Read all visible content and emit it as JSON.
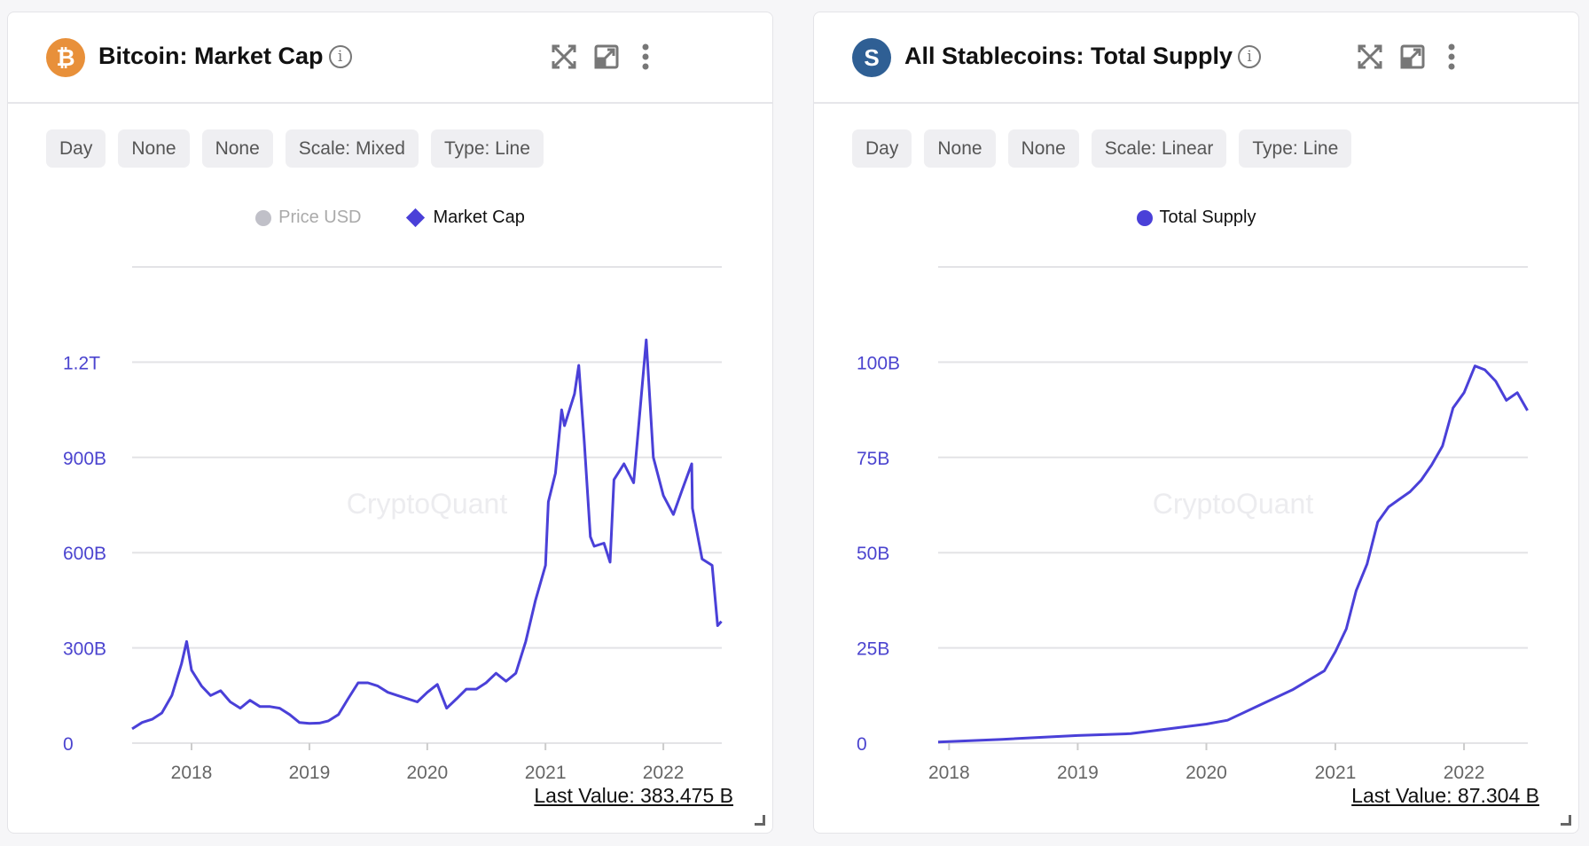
{
  "panels": [
    {
      "title": "Bitcoin: Market Cap",
      "coin_icon": "bitcoin-icon",
      "coin_glyph": "₿",
      "coin_color": "#e8903a",
      "buttons": [
        "Day",
        "None",
        "None",
        "Scale: Mixed",
        "Type: Line"
      ],
      "legend": [
        {
          "label": "Price USD",
          "marker": "circle",
          "color": "#c0c0c8",
          "active": false
        },
        {
          "label": "Market Cap",
          "marker": "diamond",
          "color": "#4a40d8",
          "active": true
        }
      ],
      "watermark": "CryptoQuant",
      "last_value": "Last Value: 383.475 B"
    },
    {
      "title": "All Stablecoins: Total Supply",
      "coin_icon": "stablecoin-icon",
      "coin_glyph": "S",
      "coin_color": "#2f5f94",
      "buttons": [
        "Day",
        "None",
        "None",
        "Scale: Linear",
        "Type: Line"
      ],
      "legend": [
        {
          "label": "Total Supply",
          "marker": "circle",
          "color": "#4a40d8",
          "active": true
        }
      ],
      "watermark": "CryptoQuant",
      "last_value": "Last Value: 87.304 B"
    }
  ],
  "chart_data": [
    {
      "type": "line",
      "series": [
        {
          "name": "Market Cap",
          "color": "#4a40d8",
          "unit": "B USD",
          "x": [
            "2017-07",
            "2017-08",
            "2017-09",
            "2017-10",
            "2017-11",
            "2017-12",
            "2017-12-17",
            "2018-01",
            "2018-02",
            "2018-03",
            "2018-04",
            "2018-05",
            "2018-06",
            "2018-07",
            "2018-08",
            "2018-09",
            "2018-10",
            "2018-11",
            "2018-12",
            "2019-01",
            "2019-02",
            "2019-03",
            "2019-04",
            "2019-05",
            "2019-06",
            "2019-07",
            "2019-08",
            "2019-09",
            "2019-10",
            "2019-11",
            "2019-12",
            "2020-01",
            "2020-02",
            "2020-03",
            "2020-04",
            "2020-05",
            "2020-06",
            "2020-07",
            "2020-08",
            "2020-09",
            "2020-10",
            "2020-11",
            "2020-12",
            "2021-01",
            "2021-01-10",
            "2021-02",
            "2021-02-20",
            "2021-03",
            "2021-04",
            "2021-04-14",
            "2021-05",
            "2021-05-20",
            "2021-06",
            "2021-07",
            "2021-07-20",
            "2021-08",
            "2021-09",
            "2021-10",
            "2021-11-09",
            "2021-12",
            "2022-01",
            "2022-02",
            "2022-03",
            "2022-03-30",
            "2022-04",
            "2022-05",
            "2022-06-01",
            "2022-06-18",
            "2022-06-30"
          ],
          "y": [
            45,
            65,
            75,
            95,
            150,
            250,
            320,
            230,
            180,
            150,
            165,
            130,
            110,
            135,
            115,
            115,
            110,
            90,
            65,
            62,
            63,
            70,
            90,
            140,
            190,
            190,
            180,
            160,
            150,
            140,
            130,
            160,
            185,
            110,
            140,
            170,
            170,
            190,
            220,
            195,
            220,
            320,
            450,
            560,
            760,
            850,
            1050,
            1000,
            1100,
            1190,
            950,
            650,
            620,
            630,
            570,
            830,
            880,
            820,
            1270,
            900,
            780,
            720,
            800,
            880,
            740,
            580,
            560,
            370,
            383.475
          ]
        }
      ],
      "yticks": [
        "0",
        "300B",
        "600B",
        "900B",
        "1.2T"
      ],
      "ytick_values": [
        0,
        300,
        600,
        900,
        1200
      ],
      "ylim": [
        0,
        1500
      ],
      "xticks": [
        "2018",
        "2019",
        "2020",
        "2021",
        "2022"
      ],
      "xlim": [
        "2017-07-01",
        "2022-07-01"
      ],
      "grid": true,
      "legend_position": "top-center"
    },
    {
      "type": "line",
      "series": [
        {
          "name": "Total Supply",
          "color": "#4a40d8",
          "unit": "B USD",
          "x": [
            "2017-12",
            "2018-06",
            "2019-01",
            "2019-06",
            "2020-01",
            "2020-03",
            "2020-06",
            "2020-09",
            "2020-12",
            "2021-01",
            "2021-02",
            "2021-03",
            "2021-04",
            "2021-05",
            "2021-06",
            "2021-07",
            "2021-08",
            "2021-09",
            "2021-10",
            "2021-11",
            "2021-12",
            "2022-01",
            "2022-02",
            "2022-03",
            "2022-04",
            "2022-05",
            "2022-06",
            "2022-06-30"
          ],
          "y": [
            0.3,
            1,
            2,
            2.5,
            5,
            6,
            10,
            14,
            19,
            24,
            30,
            40,
            47,
            58,
            62,
            64,
            66,
            69,
            73,
            78,
            88,
            92,
            99,
            98,
            95,
            90,
            92,
            87.304
          ]
        }
      ],
      "yticks": [
        "0",
        "25B",
        "50B",
        "75B",
        "100B"
      ],
      "ytick_values": [
        0,
        25,
        50,
        75,
        100
      ],
      "ylim": [
        0,
        125
      ],
      "xticks": [
        "2018",
        "2019",
        "2020",
        "2021",
        "2022"
      ],
      "xlim": [
        "2017-12-01",
        "2022-07-01"
      ],
      "grid": true,
      "legend_position": "top-center"
    }
  ]
}
